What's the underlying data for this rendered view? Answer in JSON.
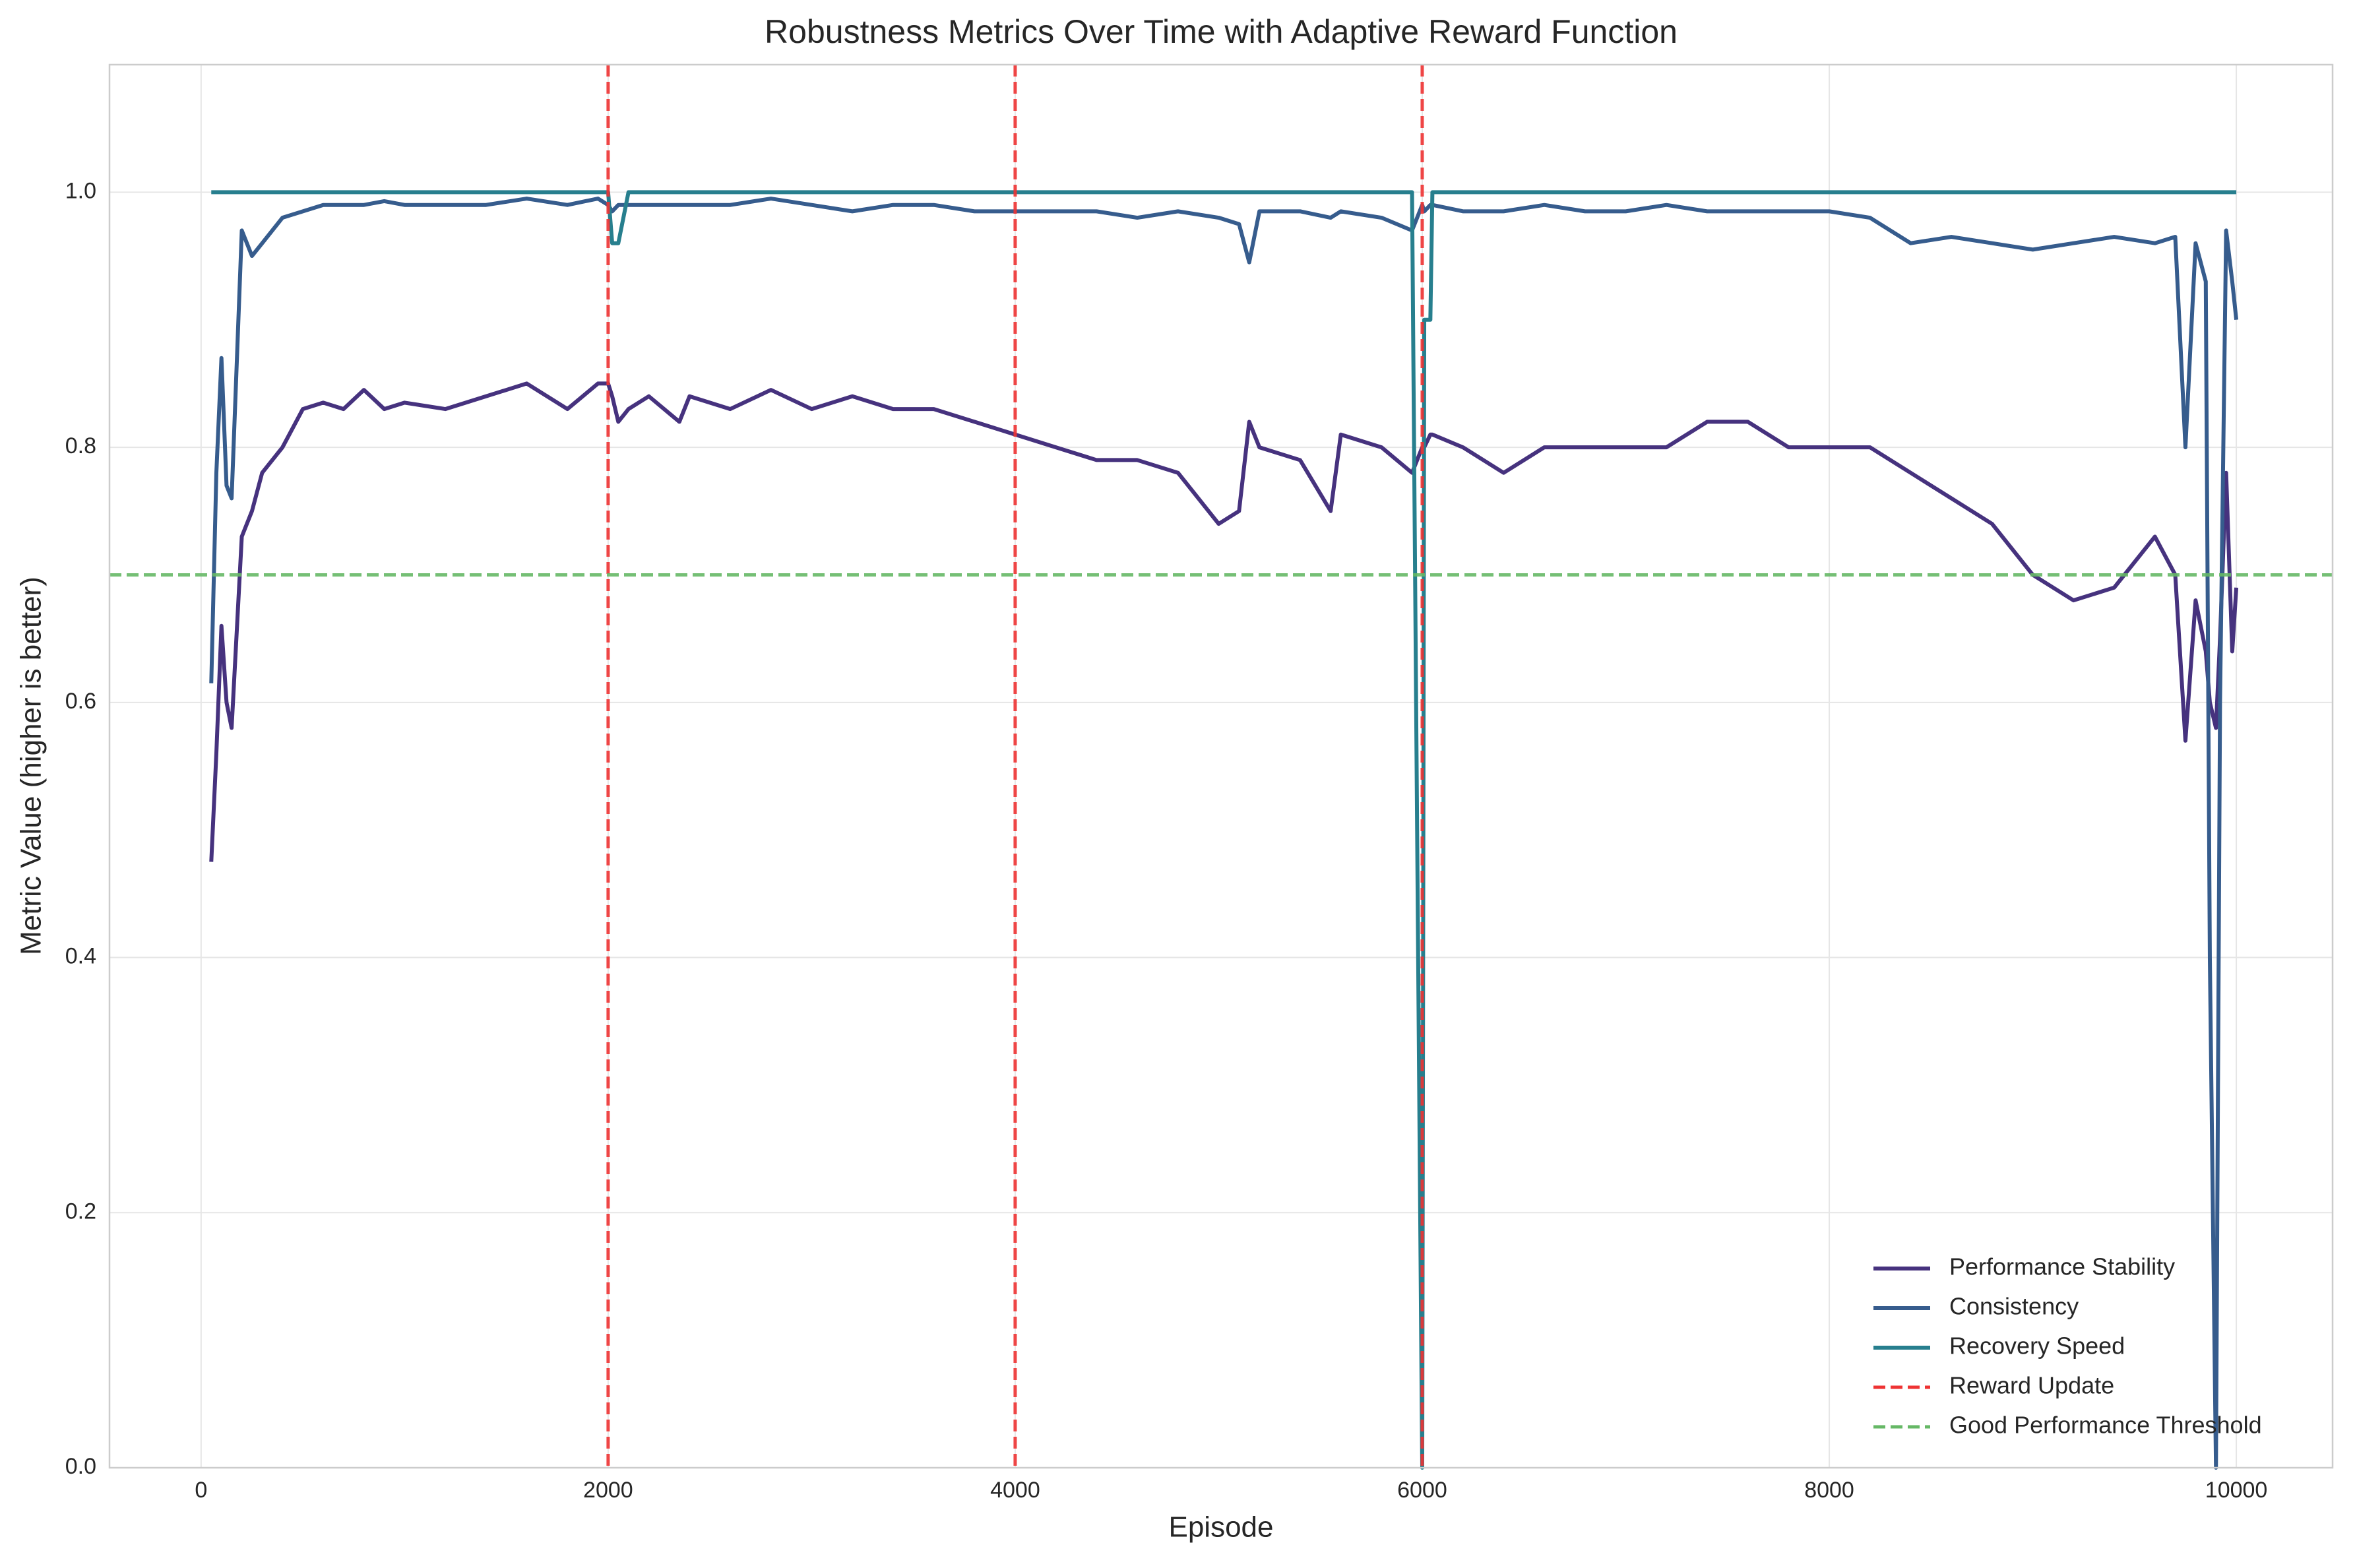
{
  "chart_data": {
    "type": "line",
    "title": "Robustness Metrics Over Time with Adaptive Reward Function",
    "x_label": "Episode",
    "y_label": "Metric Value (higher is better)",
    "x": [
      50,
      75,
      100,
      125,
      150,
      200,
      250,
      300,
      400,
      500,
      600,
      700,
      800,
      900,
      1000,
      1200,
      1400,
      1600,
      1800,
      1950,
      2000,
      2020,
      2050,
      2100,
      2200,
      2350,
      2400,
      2600,
      2800,
      3000,
      3200,
      3400,
      3600,
      3800,
      4000,
      4200,
      4400,
      4600,
      4800,
      5000,
      5100,
      5150,
      5200,
      5400,
      5550,
      5600,
      5800,
      5950,
      6000,
      6010,
      6040,
      6050,
      6200,
      6400,
      6600,
      6800,
      7000,
      7200,
      7400,
      7600,
      7800,
      8000,
      8200,
      8400,
      8600,
      8800,
      9000,
      9200,
      9400,
      9600,
      9700,
      9750,
      9800,
      9850,
      9870,
      9900,
      9920,
      9950,
      9980,
      10000
    ],
    "series": [
      {
        "name": "Performance Stability",
        "color": "#46327e",
        "values": [
          0.475,
          0.56,
          0.66,
          0.6,
          0.58,
          0.73,
          0.75,
          0.78,
          0.8,
          0.83,
          0.835,
          0.83,
          0.845,
          0.83,
          0.835,
          0.83,
          0.84,
          0.85,
          0.83,
          0.85,
          0.85,
          0.84,
          0.82,
          0.83,
          0.84,
          0.82,
          0.84,
          0.83,
          0.845,
          0.83,
          0.84,
          0.83,
          0.83,
          0.82,
          0.81,
          0.8,
          0.79,
          0.79,
          0.78,
          0.74,
          0.75,
          0.82,
          0.8,
          0.79,
          0.75,
          0.81,
          0.8,
          0.78,
          0.8,
          0.8,
          0.81,
          0.81,
          0.8,
          0.78,
          0.8,
          0.8,
          0.8,
          0.8,
          0.82,
          0.82,
          0.8,
          0.8,
          0.8,
          0.78,
          0.76,
          0.74,
          0.7,
          0.68,
          0.69,
          0.73,
          0.7,
          0.57,
          0.68,
          0.64,
          0.6,
          0.58,
          0.65,
          0.78,
          0.64,
          0.69
        ]
      },
      {
        "name": "Consistency",
        "color": "#365c8d",
        "values": [
          0.615,
          0.78,
          0.87,
          0.77,
          0.76,
          0.97,
          0.95,
          0.96,
          0.98,
          0.985,
          0.99,
          0.99,
          0.99,
          0.993,
          0.99,
          0.99,
          0.99,
          0.995,
          0.99,
          0.995,
          0.99,
          0.985,
          0.99,
          0.99,
          0.99,
          0.99,
          0.99,
          0.99,
          0.995,
          0.99,
          0.985,
          0.99,
          0.99,
          0.985,
          0.985,
          0.985,
          0.985,
          0.98,
          0.985,
          0.98,
          0.975,
          0.945,
          0.985,
          0.985,
          0.98,
          0.985,
          0.98,
          0.97,
          0.99,
          0.985,
          0.99,
          0.99,
          0.985,
          0.985,
          0.99,
          0.985,
          0.985,
          0.99,
          0.985,
          0.985,
          0.985,
          0.985,
          0.98,
          0.96,
          0.965,
          0.96,
          0.955,
          0.96,
          0.965,
          0.96,
          0.965,
          0.8,
          0.96,
          0.93,
          0.4,
          0,
          0.6,
          0.97,
          0.93,
          0.9
        ]
      },
      {
        "name": "Recovery Speed",
        "color": "#277f8e",
        "values": [
          1,
          1,
          1,
          1,
          1,
          1,
          1,
          1,
          1,
          1,
          1,
          1,
          1,
          1,
          1,
          1,
          1,
          1,
          1,
          1,
          1,
          0.96,
          0.96,
          1,
          1,
          1,
          1,
          1,
          1,
          1,
          1,
          1,
          1,
          1,
          1,
          1,
          1,
          1,
          1,
          1,
          1,
          1,
          1,
          1,
          1,
          1,
          1,
          1,
          0,
          0.9,
          0.9,
          1,
          1,
          1,
          1,
          1,
          1,
          1,
          1,
          1,
          1,
          1,
          1,
          1,
          1,
          1,
          1,
          1,
          1,
          1,
          1,
          1,
          1,
          1,
          1,
          1,
          1,
          1,
          1,
          1
        ]
      }
    ],
    "reference_lines": [
      {
        "name": "Reward Update",
        "axis": "x",
        "values": [
          2000,
          4000,
          6000
        ],
        "color": "#ee3333"
      },
      {
        "name": "Good Performance Threshold",
        "axis": "y",
        "values": [
          0.7
        ],
        "color": "#66b866"
      }
    ],
    "xlim": [
      -450,
      10473
    ],
    "ylim": [
      0,
      1.1
    ],
    "xticks": [
      0,
      2000,
      4000,
      6000,
      8000,
      10000
    ],
    "yticks": [
      {
        "value": 0,
        "label": "0.0"
      },
      0.2,
      0.4,
      0.6,
      0.8,
      {
        "value": 1,
        "label": "1.0"
      }
    ],
    "grid": true,
    "legend": "lower right"
  }
}
